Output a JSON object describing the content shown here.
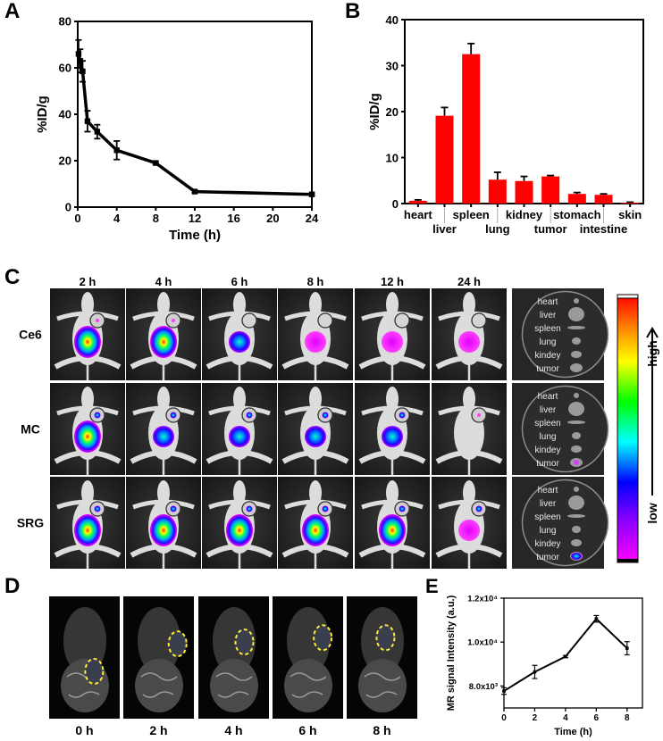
{
  "panel_labels": {
    "a": "A",
    "b": "B",
    "c": "C",
    "d": "D",
    "e": "E"
  },
  "chart_data": [
    {
      "panel": "A",
      "type": "line",
      "xlabel": "Time (h)",
      "ylabel": "%ID/g",
      "xlim": [
        0,
        24
      ],
      "ylim": [
        0,
        80
      ],
      "xticks": [
        "0",
        "4",
        "8",
        "12",
        "16",
        "20",
        "24"
      ],
      "yticks": [
        "0",
        "20",
        "40",
        "60",
        "80"
      ],
      "grid": false,
      "x": [
        0.083,
        0.25,
        0.5,
        1,
        2,
        4,
        8,
        12,
        24
      ],
      "y": [
        66,
        63,
        58.5,
        37,
        32.5,
        24.5,
        19,
        6.7,
        5.5
      ],
      "error": [
        6,
        5,
        4.5,
        4.5,
        3,
        4,
        0.5,
        0.5,
        0.5
      ],
      "color": "#000000"
    },
    {
      "panel": "B",
      "type": "bar",
      "xlabel": "",
      "ylabel": "%ID/g",
      "ylim": [
        0,
        40
      ],
      "yticks": [
        "0",
        "10",
        "20",
        "30",
        "40"
      ],
      "grid": false,
      "categories": [
        "heart",
        "liver",
        "spleen",
        "lung",
        "kidney",
        "tumor",
        "stomach",
        "intestine",
        "skin"
      ],
      "values": [
        0.6,
        19.1,
        32.5,
        5.2,
        4.9,
        5.9,
        2.1,
        1.9,
        0.2
      ],
      "error": [
        0.2,
        1.8,
        2.3,
        1.6,
        1.0,
        0.2,
        0.3,
        0.2,
        0.1
      ],
      "color": "#ff0000"
    },
    {
      "panel": "E",
      "type": "line",
      "xlabel": "Time (h)",
      "ylabel": "MR signal Intensity (a.u.)",
      "xlim": [
        0,
        9
      ],
      "ylim": [
        7000,
        12000
      ],
      "xticks": [
        "0",
        "2",
        "4",
        "6",
        "8"
      ],
      "yticks": [
        "8.0x10³",
        "1.0x10⁴",
        "1.2x10⁴"
      ],
      "grid": false,
      "x": [
        0,
        2,
        4,
        6,
        8
      ],
      "y": [
        7770,
        8640,
        9340,
        11060,
        9720
      ],
      "error": [
        150,
        300,
        50,
        150,
        300
      ],
      "color": "#000000"
    }
  ],
  "panel_c": {
    "times": [
      "2 h",
      "4 h",
      "6 h",
      "8 h",
      "12 h",
      "24 h"
    ],
    "groups": [
      "Ce6",
      "MC",
      "SRG"
    ],
    "organs": [
      "heart",
      "liver",
      "spleen",
      "lung",
      "kindey",
      "tumor"
    ],
    "colorbar": {
      "low": "low",
      "high": "high"
    }
  },
  "panel_d": {
    "times": [
      "0 h",
      "2 h",
      "4 h",
      "6 h",
      "8 h"
    ],
    "roi_color": "#ffeb3b"
  }
}
